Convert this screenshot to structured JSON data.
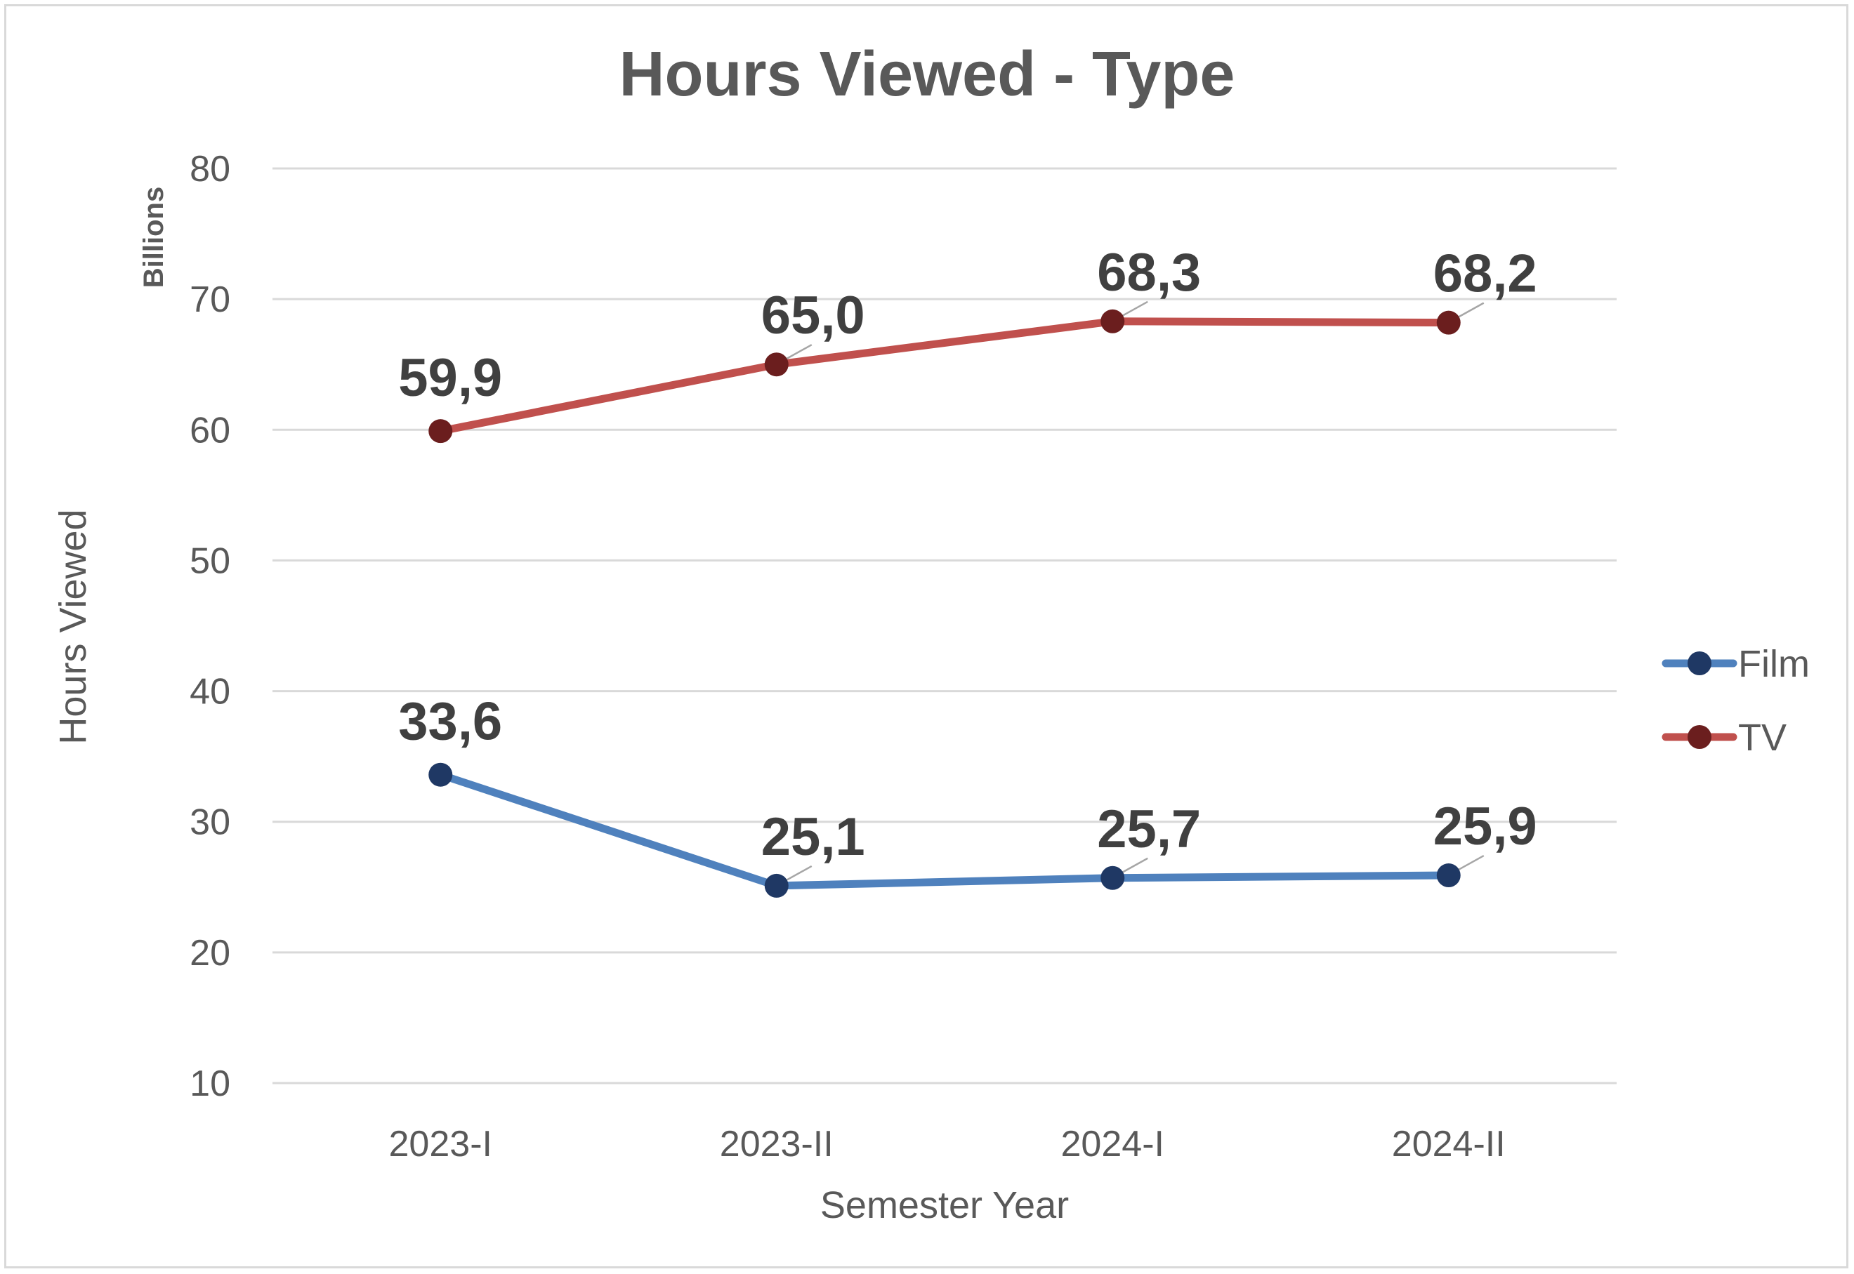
{
  "chart_data": {
    "type": "line",
    "title": "Hours Viewed - Type",
    "xlabel": "Semester Year",
    "ylabel": "Hours Viewed",
    "y_units": "Billions",
    "categories": [
      "2023-I",
      "2023-II",
      "2024-I",
      "2024-II"
    ],
    "ylim": [
      10,
      80
    ],
    "yticks": [
      10,
      20,
      30,
      40,
      50,
      60,
      70,
      80
    ],
    "grid": true,
    "legend_position": "right",
    "series": [
      {
        "name": "Film",
        "values": [
          33.6,
          25.1,
          25.7,
          25.9
        ],
        "labels": [
          "33,6",
          "25,1",
          "25,7",
          "25,9"
        ],
        "line_color": "#4f81bd",
        "marker_color": "#1f3864"
      },
      {
        "name": "TV",
        "values": [
          59.9,
          65.0,
          68.3,
          68.2
        ],
        "labels": [
          "59,9",
          "65,0",
          "68,3",
          "68,2"
        ],
        "line_color": "#c0504d",
        "marker_color": "#6b1e1e"
      }
    ]
  }
}
